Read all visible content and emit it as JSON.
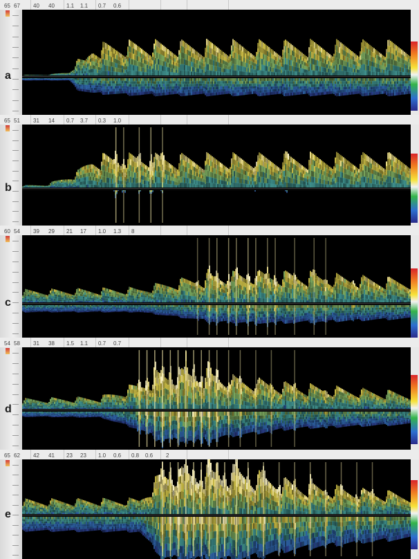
{
  "colors": {
    "background": "#000000",
    "spectrum_bright": "#fff6b0",
    "spectrum_yellow": "#dccb48",
    "spectrum_green": "#5f9e6e",
    "spectrum_blue": "#2f4ea0",
    "baseline": "#111111",
    "header_bg": "#ececec"
  },
  "panels": [
    {
      "letter": "a",
      "header_values": [
        "65",
        "67",
        "40",
        "40",
        "1.1",
        "1.1",
        "0.7",
        "0.6"
      ],
      "envelope": [
        [
          0,
          0.02,
          0.05
        ],
        [
          0.07,
          0.03,
          0.05
        ],
        [
          0.12,
          0.08,
          0.05
        ],
        [
          0.14,
          0.28,
          0.3
        ],
        [
          0.16,
          0.3,
          0.35
        ],
        [
          0.18,
          0.55,
          0.4
        ],
        [
          0.3,
          0.6,
          0.45
        ],
        [
          0.5,
          0.6,
          0.45
        ],
        [
          1,
          0.6,
          0.45
        ]
      ],
      "bursts": [],
      "tail_fade": 0
    },
    {
      "letter": "b",
      "header_values": [
        "65",
        "51",
        "31",
        "14",
        "0.7",
        "3.7",
        "0.3",
        "1.0"
      ],
      "envelope": [
        [
          0,
          0.05,
          0.0
        ],
        [
          0.06,
          0.07,
          0.0
        ],
        [
          0.1,
          0.18,
          0.0
        ],
        [
          0.14,
          0.3,
          0.0
        ],
        [
          0.18,
          0.6,
          0.0
        ],
        [
          1,
          0.62,
          0.0
        ]
      ],
      "bursts": [
        [
          0.24,
          0.9
        ],
        [
          0.26,
          0.5
        ],
        [
          0.3,
          0.6
        ],
        [
          0.33,
          0.8
        ],
        [
          0.36,
          0.5
        ],
        [
          0.6,
          0.2
        ],
        [
          0.68,
          0.2
        ]
      ],
      "tail_fade": 0
    },
    {
      "letter": "c",
      "header_values": [
        "60",
        "54",
        "39",
        "29",
        "21",
        "17",
        "1.0",
        "1.3",
        "8"
      ],
      "envelope": [
        [
          0,
          0.22,
          0.2
        ],
        [
          0.3,
          0.26,
          0.2
        ],
        [
          0.4,
          0.4,
          0.35
        ],
        [
          0.5,
          0.5,
          0.5
        ],
        [
          0.7,
          0.55,
          0.55
        ],
        [
          1,
          0.5,
          0.5
        ]
      ],
      "bursts": [
        [
          0.45,
          0.3
        ],
        [
          0.48,
          0.4
        ],
        [
          0.5,
          0.5
        ],
        [
          0.53,
          0.6
        ],
        [
          0.55,
          0.5
        ],
        [
          0.58,
          0.7
        ],
        [
          0.6,
          0.5
        ],
        [
          0.63,
          0.4
        ],
        [
          0.65,
          0.4
        ],
        [
          0.7,
          0.3
        ],
        [
          0.75,
          0.3
        ],
        [
          0.78,
          0.3
        ],
        [
          0.85,
          0.25
        ]
      ],
      "tail_fade": 1
    },
    {
      "letter": "d",
      "header_values": [
        "54",
        "58",
        "31",
        "38",
        "1.5",
        "1.1",
        "0.7",
        "0.7"
      ],
      "envelope": [
        [
          0,
          0.2,
          0.12
        ],
        [
          0.2,
          0.24,
          0.14
        ],
        [
          0.3,
          0.5,
          0.45
        ],
        [
          0.35,
          0.7,
          0.7
        ],
        [
          0.45,
          0.75,
          0.75
        ],
        [
          0.55,
          0.6,
          0.6
        ],
        [
          0.7,
          0.5,
          0.45
        ],
        [
          1,
          0.4,
          0.4
        ]
      ],
      "bursts": [
        [
          0.3,
          0.9
        ],
        [
          0.32,
          1
        ],
        [
          0.34,
          1
        ],
        [
          0.36,
          1
        ],
        [
          0.38,
          0.9
        ],
        [
          0.4,
          1
        ],
        [
          0.42,
          0.9
        ],
        [
          0.44,
          0.9
        ],
        [
          0.46,
          0.8
        ],
        [
          0.48,
          0.8
        ],
        [
          0.5,
          0.6
        ],
        [
          0.53,
          0.5
        ],
        [
          0.56,
          0.4
        ],
        [
          0.6,
          0.35
        ],
        [
          0.64,
          0.3
        ],
        [
          0.7,
          0.3
        ],
        [
          0.78,
          0.25
        ]
      ],
      "tail_fade": 1
    },
    {
      "letter": "e",
      "header_values": [
        "65",
        "62",
        "42",
        "41",
        "23",
        "23",
        "1.0",
        "0.6",
        "0.8",
        "0.6",
        "2"
      ],
      "envelope": [
        [
          0,
          0.32,
          0.32
        ],
        [
          0.3,
          0.34,
          0.34
        ],
        [
          0.36,
          0.95,
          0.95
        ],
        [
          0.55,
          1,
          1
        ],
        [
          0.7,
          0.7,
          0.75
        ],
        [
          0.85,
          0.55,
          0.6
        ],
        [
          1,
          0.45,
          0.5
        ]
      ],
      "bursts": [
        [
          0.36,
          1
        ],
        [
          0.38,
          1
        ],
        [
          0.4,
          1
        ],
        [
          0.42,
          1
        ],
        [
          0.44,
          1
        ],
        [
          0.46,
          1
        ],
        [
          0.48,
          1
        ],
        [
          0.5,
          1
        ],
        [
          0.52,
          1
        ],
        [
          0.55,
          0.9
        ],
        [
          0.58,
          0.8
        ],
        [
          0.62,
          0.7
        ],
        [
          0.66,
          0.6
        ],
        [
          0.7,
          0.5
        ],
        [
          0.74,
          0.5
        ],
        [
          0.78,
          0.45
        ],
        [
          0.82,
          0.4
        ],
        [
          0.86,
          0.4
        ],
        [
          0.9,
          0.35
        ]
      ],
      "tail_fade": 0
    }
  ]
}
